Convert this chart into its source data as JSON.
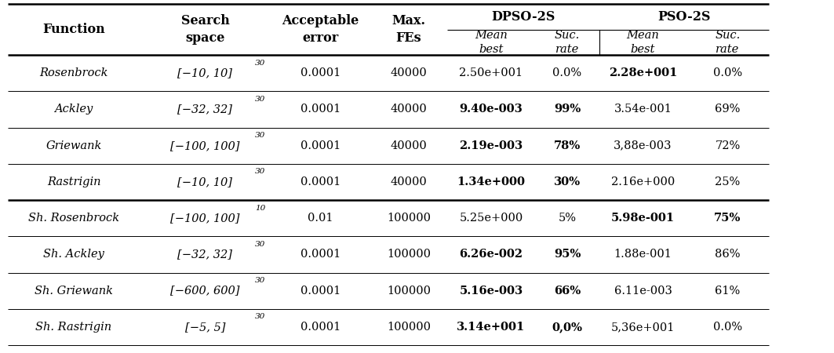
{
  "rows": [
    {
      "function": "Rosenbrock",
      "search_space_base": "[−10, 10]",
      "search_space_exp": "30",
      "acceptable_error": "0.0001",
      "max_fes": "40000",
      "dpso_mean": "2.50e+001",
      "dpso_suc": "0.0%",
      "pso_mean": "2.28e+001",
      "pso_suc": "0.0%",
      "bold_dpso_mean": false,
      "bold_dpso_suc": false,
      "bold_pso_mean": true,
      "bold_pso_suc": false
    },
    {
      "function": "Ackley",
      "search_space_base": "[−32, 32]",
      "search_space_exp": "30",
      "acceptable_error": "0.0001",
      "max_fes": "40000",
      "dpso_mean": "9.40e-003",
      "dpso_suc": "99%",
      "pso_mean": "3.54e-001",
      "pso_suc": "69%",
      "bold_dpso_mean": true,
      "bold_dpso_suc": true,
      "bold_pso_mean": false,
      "bold_pso_suc": false
    },
    {
      "function": "Griewank",
      "search_space_base": "[−100, 100]",
      "search_space_exp": "30",
      "acceptable_error": "0.0001",
      "max_fes": "40000",
      "dpso_mean": "2.19e-003",
      "dpso_suc": "78%",
      "pso_mean": "3,88e-003",
      "pso_suc": "72%",
      "bold_dpso_mean": true,
      "bold_dpso_suc": true,
      "bold_pso_mean": false,
      "bold_pso_suc": false
    },
    {
      "function": "Rastrigin",
      "search_space_base": "[−10, 10]",
      "search_space_exp": "30",
      "acceptable_error": "0.0001",
      "max_fes": "40000",
      "dpso_mean": "1.34e+000",
      "dpso_suc": "30%",
      "pso_mean": "2.16e+000",
      "pso_suc": "25%",
      "bold_dpso_mean": true,
      "bold_dpso_suc": true,
      "bold_pso_mean": false,
      "bold_pso_suc": false
    },
    {
      "function": "Sh. Rosenbrock",
      "search_space_base": "[−100, 100]",
      "search_space_exp": "10",
      "acceptable_error": "0.01",
      "max_fes": "100000",
      "dpso_mean": "5.25e+000",
      "dpso_suc": "5%",
      "pso_mean": "5.98e-001",
      "pso_suc": "75%",
      "bold_dpso_mean": false,
      "bold_dpso_suc": false,
      "bold_pso_mean": true,
      "bold_pso_suc": true
    },
    {
      "function": "Sh. Ackley",
      "search_space_base": "[−32, 32]",
      "search_space_exp": "30",
      "acceptable_error": "0.0001",
      "max_fes": "100000",
      "dpso_mean": "6.26e-002",
      "dpso_suc": "95%",
      "pso_mean": "1.88e-001",
      "pso_suc": "86%",
      "bold_dpso_mean": true,
      "bold_dpso_suc": true,
      "bold_pso_mean": false,
      "bold_pso_suc": false
    },
    {
      "function": "Sh. Griewank",
      "search_space_base": "[−600, 600]",
      "search_space_exp": "30",
      "acceptable_error": "0.0001",
      "max_fes": "100000",
      "dpso_mean": "5.16e-003",
      "dpso_suc": "66%",
      "pso_mean": "6.11e-003",
      "pso_suc": "61%",
      "bold_dpso_mean": true,
      "bold_dpso_suc": true,
      "bold_pso_mean": false,
      "bold_pso_suc": false
    },
    {
      "function": "Sh. Rastrigin",
      "search_space_base": "[−5, 5]",
      "search_space_exp": "30",
      "acceptable_error": "0.0001",
      "max_fes": "100000",
      "dpso_mean": "3.14e+001",
      "dpso_suc": "0,0%",
      "pso_mean": "5,36e+001",
      "pso_suc": "0.0%",
      "bold_dpso_mean": true,
      "bold_dpso_suc": true,
      "bold_pso_mean": false,
      "bold_pso_suc": false
    }
  ],
  "thick_row_line_after": [
    3
  ],
  "figure_width": 10.63,
  "figure_height": 4.5,
  "dpi": 100
}
